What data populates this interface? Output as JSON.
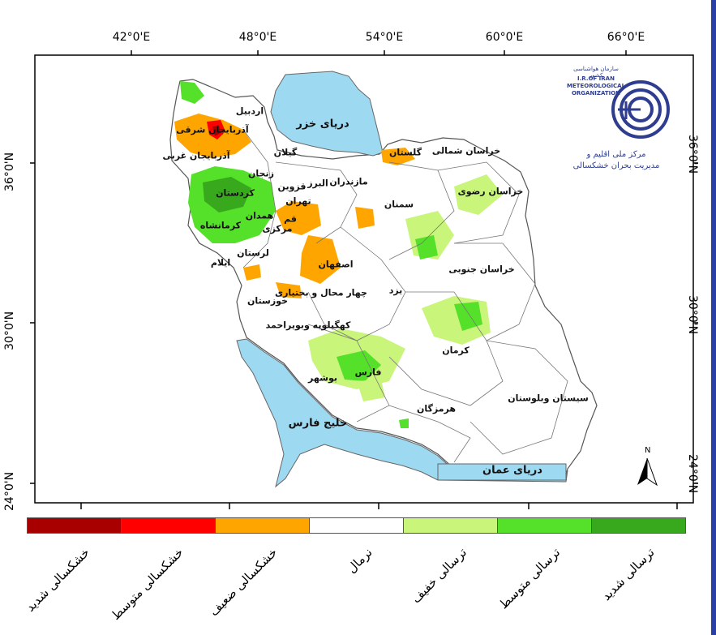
{
  "map": {
    "longitude_ticks": [
      "42°0'E",
      "48°0'E",
      "54°0'E",
      "60°0'E",
      "66°0'E"
    ],
    "latitude_ticks": [
      "36°0'N",
      "30°0'N",
      "24°0'N"
    ],
    "seas": {
      "caspian": "دریای خزر",
      "persian_gulf": "خلیج فارس",
      "oman": "دریای عمان"
    },
    "provinces": {
      "ardabil": "اردبیل",
      "azarbaijan_sharghi": "آذربایجان شرقی",
      "azarbaijan_gharbi": "آذربایجان غربی",
      "gilan": "گیلان",
      "zanjan": "زنجان",
      "kordestan": "کردستان",
      "ghazvin": "قزوین",
      "alborz": "البرز",
      "mazandaran": "مازندران",
      "golestan": "گلستان",
      "khorasan_shomali": "خراسان شمالی",
      "khorasan_razavi": "خراسان رضوی",
      "khorasan_jonubi": "خراسان جنوبی",
      "tehran": "تهران",
      "semnan": "سمنان",
      "hamedan": "همدان",
      "ghom": "قم",
      "kermanshah": "کرمانشاه",
      "markazi": "مرکزی",
      "lorestan": "لرستان",
      "ilam": "ایلام",
      "esfahan": "اصفهان",
      "chaharmahal": "چهار محال و بختیاری",
      "yazd": "یزد",
      "khuzestan": "خوزستان",
      "kohgiluyeh": "کهگیلویه وبویراحمد",
      "kerman": "کرمان",
      "fars": "فارس",
      "bushehr": "بوشهر",
      "hormozgan": "هرمزگان",
      "sistan": "سیستان وبلوستان"
    },
    "north_arrow_label": "N"
  },
  "logo": {
    "fa_top": "سازمان هواشناسی کشور",
    "en_lines": [
      "I.R.OF IRAN",
      "METEOROLOGICAL",
      "ORGANIZATION"
    ],
    "fa_caption_1": "مرکز ملی اقلیم و",
    "fa_caption_2": "مدیریت بحران خشکسالی"
  },
  "legend": [
    {
      "label": "خشکسالی شدید",
      "color": "#a80000"
    },
    {
      "label": "خشکسالی متوسط",
      "color": "#ff0000"
    },
    {
      "label": "خشکسالی ضعیف",
      "color": "#ffa500"
    },
    {
      "label": "نرمال",
      "color": "#ffffff"
    },
    {
      "label": "ترسالی خفیف",
      "color": "#c8f57a"
    },
    {
      "label": "ترسالی متوسط",
      "color": "#55e02a"
    },
    {
      "label": "ترسالی شدید",
      "color": "#38a81c"
    }
  ],
  "colors": {
    "sea": "#9ed9f2",
    "frame_accent": "#2a3fa8",
    "logo_blue": "#2e3d8f"
  }
}
